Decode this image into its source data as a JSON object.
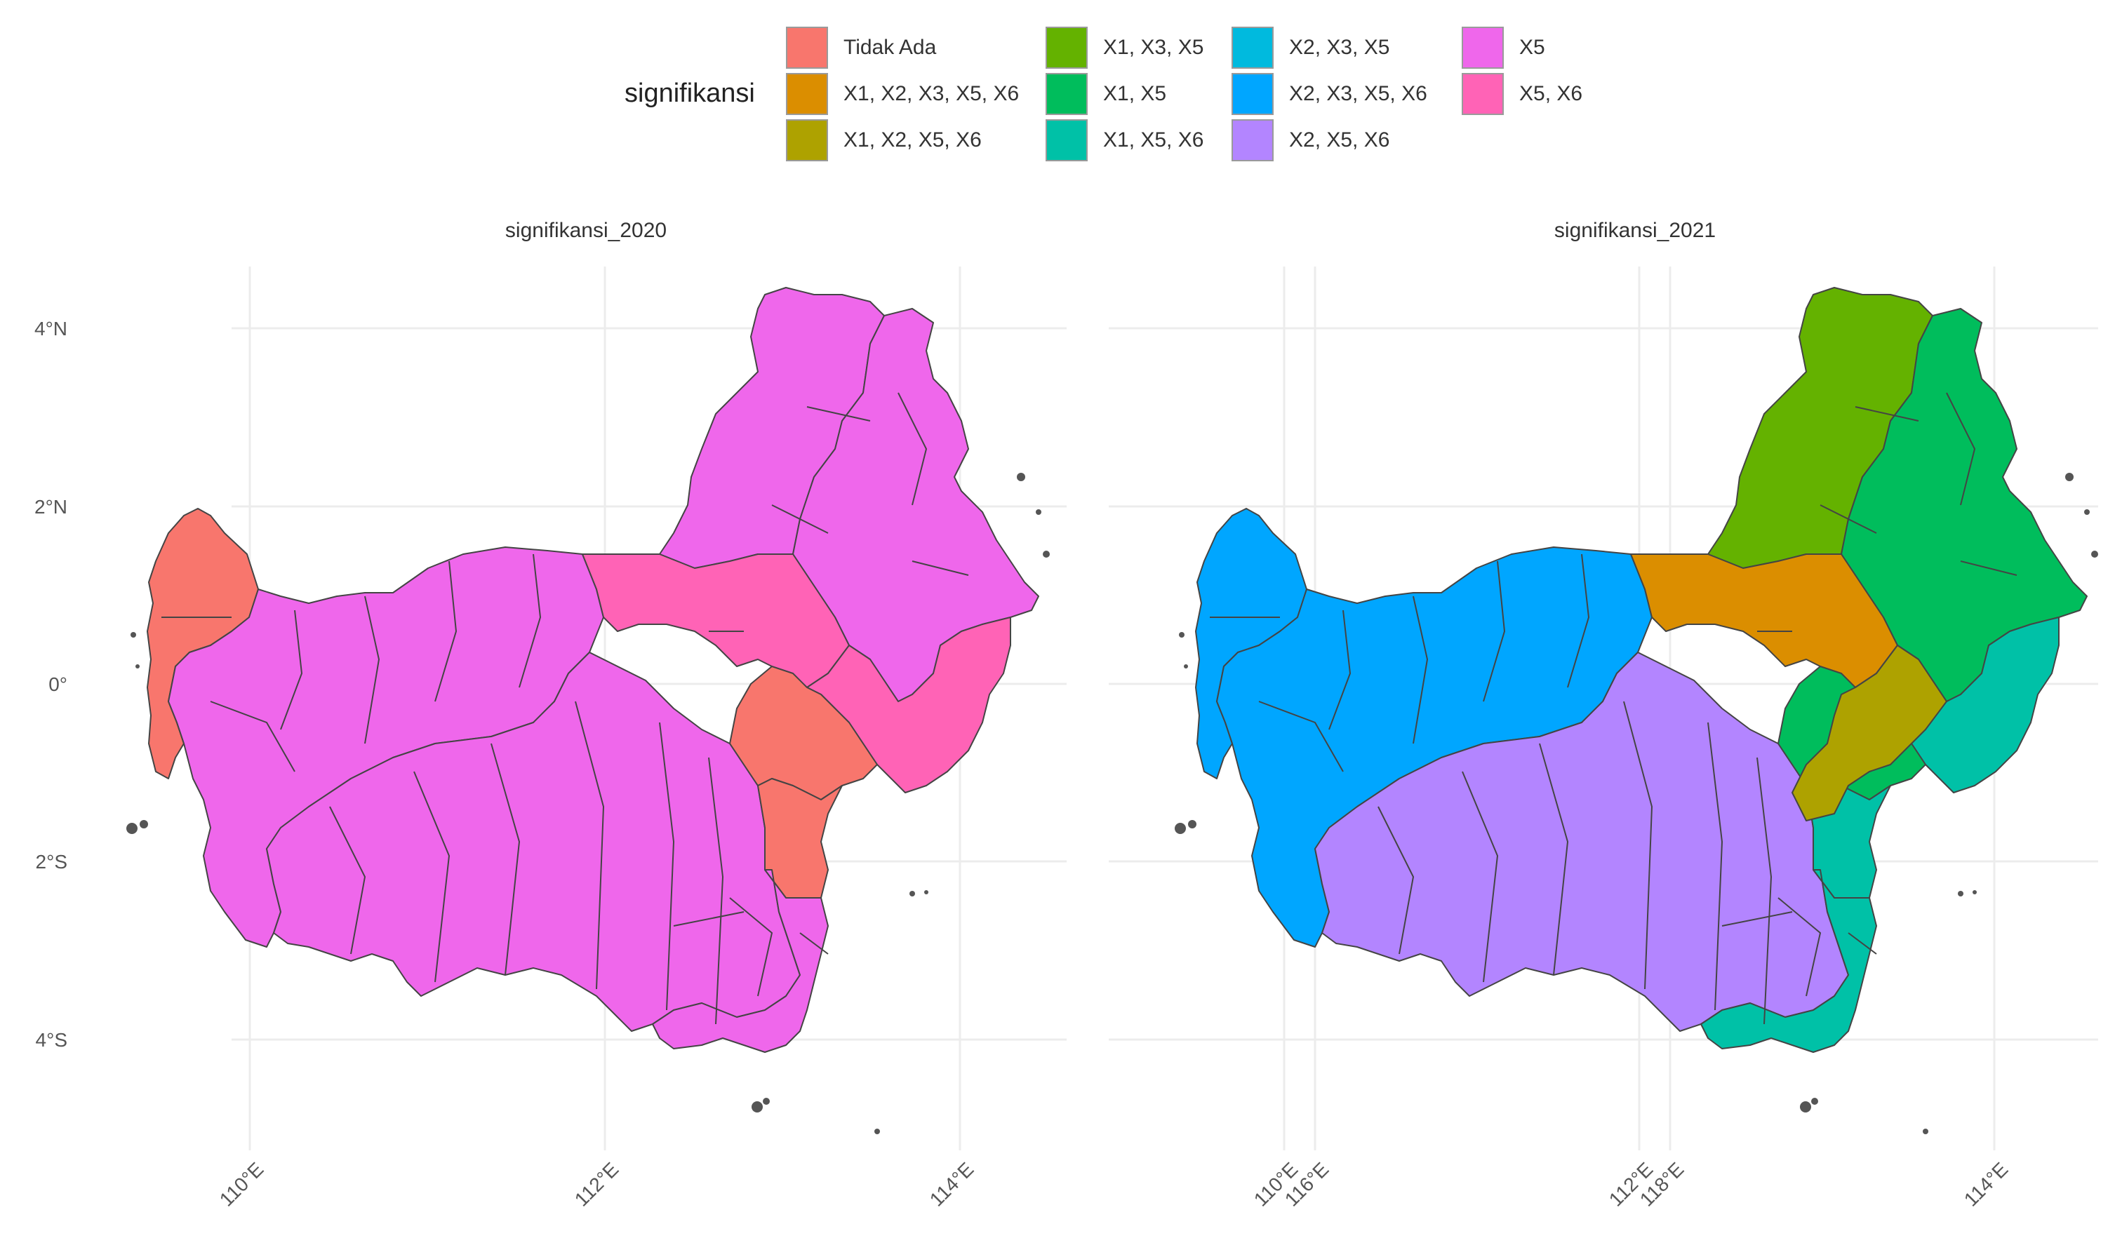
{
  "legend": {
    "title": "signifikansi",
    "items": [
      {
        "label": "Tidak Ada",
        "color": "#F8766D"
      },
      {
        "label": "X1, X2, X3, X5, X6",
        "color": "#DB8E00"
      },
      {
        "label": "X1, X2, X5, X6",
        "color": "#AEA200"
      },
      {
        "label": "X1, X3, X5",
        "color": "#64B200"
      },
      {
        "label": "X1, X5",
        "color": "#00BD5C"
      },
      {
        "label": "X1, X5, X6",
        "color": "#00C1A7"
      },
      {
        "label": "X2, X3, X5",
        "color": "#00BADE"
      },
      {
        "label": "X2, X3, X5, X6",
        "color": "#00A6FF"
      },
      {
        "label": "X2, X5, X6",
        "color": "#B385FF"
      },
      {
        "label": "X5",
        "color": "#EF67EB"
      },
      {
        "label": "X5, X6",
        "color": "#FF63B6"
      }
    ]
  },
  "panels": [
    {
      "title": "signifikansi_2020"
    },
    {
      "title": "signifikansi_2021"
    }
  ],
  "axes": {
    "lat_ticks": [
      "4°N",
      "2°N",
      "0°",
      "2°S",
      "4°S"
    ],
    "lon_ticks": [
      "110°E",
      "112°E",
      "114°E",
      "116°E",
      "118°E"
    ]
  },
  "map_data": {
    "signifikansi_2020": {
      "west_coast": "Tidak Ada",
      "west_interior": "X5",
      "central_south": "X5",
      "north": "X5",
      "northeast": "X5",
      "central_north": "X5, X6",
      "east": "X5, X6",
      "east_inner": "Tidak Ada",
      "southeast": "Tidak Ada",
      "south_east": "X5"
    },
    "signifikansi_2021": {
      "west_coast": "X2, X3, X5, X6",
      "west_interior": "X2, X3, X5, X6",
      "central_south": "X2, X5, X6",
      "north": "X1, X3, X5",
      "northeast": "X1, X5",
      "central_north": "X1, X2, X3, X5, X6",
      "east": "X1, X5, X6",
      "east_inner": "X1, X5",
      "southeast": "X1, X5, X6",
      "south_east": "X1, X5, X6",
      "central": "X1, X2, X5, X6"
    }
  }
}
